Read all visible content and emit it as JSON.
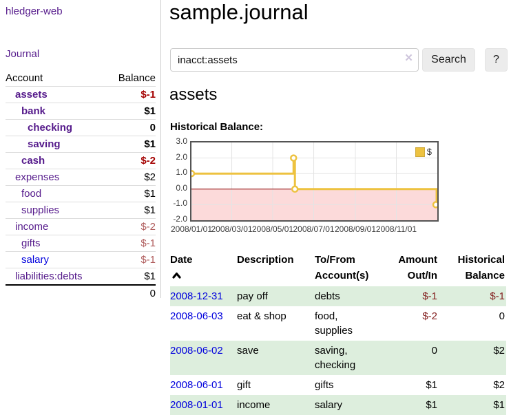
{
  "app": {
    "title": "hledger-web"
  },
  "sidebar": {
    "journal_link": "Journal",
    "accounts_table": {
      "col_account": "Account",
      "col_balance": "Balance",
      "rows": [
        {
          "name": "assets",
          "balance": "$-1",
          "level": 0,
          "bold": true,
          "neg": "strong"
        },
        {
          "name": "bank",
          "balance": "$1",
          "level": 1,
          "bold": true,
          "neg": "none"
        },
        {
          "name": "checking",
          "balance": "0",
          "level": 2,
          "bold": true,
          "neg": "none"
        },
        {
          "name": "saving",
          "balance": "$1",
          "level": 2,
          "bold": true,
          "neg": "none"
        },
        {
          "name": "cash",
          "balance": "$-2",
          "level": 1,
          "bold": true,
          "neg": "strong"
        },
        {
          "name": "expenses",
          "balance": "$2",
          "level": 0,
          "bold": false,
          "neg": "none"
        },
        {
          "name": "food",
          "balance": "$1",
          "level": 1,
          "bold": false,
          "neg": "none"
        },
        {
          "name": "supplies",
          "balance": "$1",
          "level": 1,
          "bold": false,
          "neg": "none"
        },
        {
          "name": "income",
          "balance": "$-2",
          "level": 0,
          "bold": false,
          "neg": "muted"
        },
        {
          "name": "gifts",
          "balance": "$-1",
          "level": 1,
          "bold": false,
          "neg": "muted"
        },
        {
          "name": "salary",
          "balance": "$-1",
          "level": 1,
          "bold": false,
          "neg": "muted",
          "unvisited": true
        },
        {
          "name": "liabilities:debts",
          "balance": "$1",
          "level": 0,
          "bold": false,
          "neg": "none"
        }
      ],
      "total": "0"
    }
  },
  "header": {
    "title": "sample.journal"
  },
  "search": {
    "query": "inacct:assets",
    "clear_icon": "×",
    "button_label": "Search",
    "help_label": "?"
  },
  "account_page": {
    "heading": "assets",
    "chart_label": "Historical Balance:"
  },
  "chart_data": {
    "type": "line",
    "style": "step",
    "title": "Historical Balance",
    "legend_position": "top-right",
    "legend": [
      {
        "label": "$",
        "color": "#EDC240"
      }
    ],
    "x_range": [
      "2008-01-01",
      "2009-01-01"
    ],
    "ylim": [
      -2,
      3
    ],
    "grid": true,
    "y_ticks": [
      {
        "v": 3,
        "label": "3.0"
      },
      {
        "v": 2,
        "label": "2.0"
      },
      {
        "v": 1,
        "label": "1.0"
      },
      {
        "v": 0,
        "label": "0.0"
      },
      {
        "v": -1,
        "label": "-1.0"
      },
      {
        "v": -2,
        "label": "-2.0"
      }
    ],
    "x_ticks": [
      {
        "date": "2008-01-01",
        "label": "2008/01/01"
      },
      {
        "date": "2008-03-01",
        "label": "2008/03/01"
      },
      {
        "date": "2008-05-01",
        "label": "2008/05/01"
      },
      {
        "date": "2008-07-01",
        "label": "2008/07/01"
      },
      {
        "date": "2008-09-01",
        "label": "2008/09/01"
      },
      {
        "date": "2008-11-01",
        "label": "2008/11/01"
      }
    ],
    "series": [
      {
        "name": "$",
        "color": "#EDC240",
        "points": [
          {
            "date": "2008-01-01",
            "value": 1
          },
          {
            "date": "2008-06-01",
            "value": 2
          },
          {
            "date": "2008-06-03",
            "value": 0
          },
          {
            "date": "2008-12-31",
            "value": -1
          }
        ]
      }
    ],
    "zero_line_color": "#8B0000",
    "negative_region_color": "#FCDADA",
    "gridline_color": "#E4E4E4",
    "border_color": "#545454"
  },
  "transactions": {
    "columns": {
      "date": "Date",
      "description": "Description",
      "tofrom1": "To/From",
      "tofrom2": "Account(s)",
      "amount1": "Amount",
      "amount2": "Out/In",
      "hist1": "Historical",
      "hist2": "Balance"
    },
    "rows": [
      {
        "date": "2008-12-31",
        "description": "pay off",
        "accounts": "debts",
        "amount": "$-1",
        "amount_neg": true,
        "balance": "$-1",
        "balance_neg": true
      },
      {
        "date": "2008-06-03",
        "description": "eat & shop",
        "accounts": "food, supplies",
        "amount": "$-2",
        "amount_neg": true,
        "balance": "0",
        "balance_neg": false
      },
      {
        "date": "2008-06-02",
        "description": "save",
        "accounts": "saving, checking",
        "amount": "0",
        "amount_neg": false,
        "balance": "$2",
        "balance_neg": false
      },
      {
        "date": "2008-06-01",
        "description": "gift",
        "accounts": "gifts",
        "amount": "$1",
        "amount_neg": false,
        "balance": "$2",
        "balance_neg": false
      },
      {
        "date": "2008-01-01",
        "description": "income",
        "accounts": "salary",
        "amount": "$1",
        "amount_neg": false,
        "balance": "$1",
        "balance_neg": false
      }
    ]
  }
}
